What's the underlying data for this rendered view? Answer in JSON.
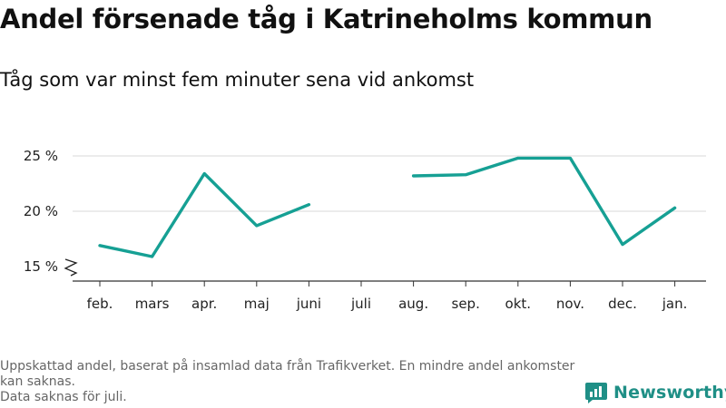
{
  "header": {
    "title": "Andel försenade tåg i Katrineholms kommun",
    "subtitle": "Tåg som var minst fem minuter sena vid ankomst"
  },
  "footer": {
    "note_line1": "Uppskattad andel, baserat på insamlad data från Trafikverket. En mindre andel ankomster kan saknas.",
    "note_line2": "Data saknas för juli."
  },
  "brand": {
    "name": "Newsworthy",
    "logo_icon": "bar-chart-speech-bubble-icon",
    "color": "#1f8f86"
  },
  "chart_data": {
    "type": "line",
    "categories": [
      "feb.",
      "mars",
      "apr.",
      "maj",
      "juni",
      "juli",
      "aug.",
      "sep.",
      "okt.",
      "nov.",
      "dec.",
      "jan."
    ],
    "series": [
      {
        "values": [
          16.9,
          15.9,
          23.4,
          18.7,
          20.6,
          null,
          23.2,
          23.3,
          24.8,
          24.8,
          17.0,
          20.3
        ],
        "color": "#16a094"
      }
    ],
    "yticks": [
      15,
      20,
      25
    ],
    "ytick_labels": [
      "15 %",
      "20 %",
      "25 %"
    ],
    "ylim": [
      13.5,
      26.5
    ],
    "axis_break": true,
    "grid": true,
    "legend": "none",
    "title": "Andel försenade tåg i Katrineholms kommun",
    "subtitle": "Tåg som var minst fem minuter sena vid ankomst"
  }
}
